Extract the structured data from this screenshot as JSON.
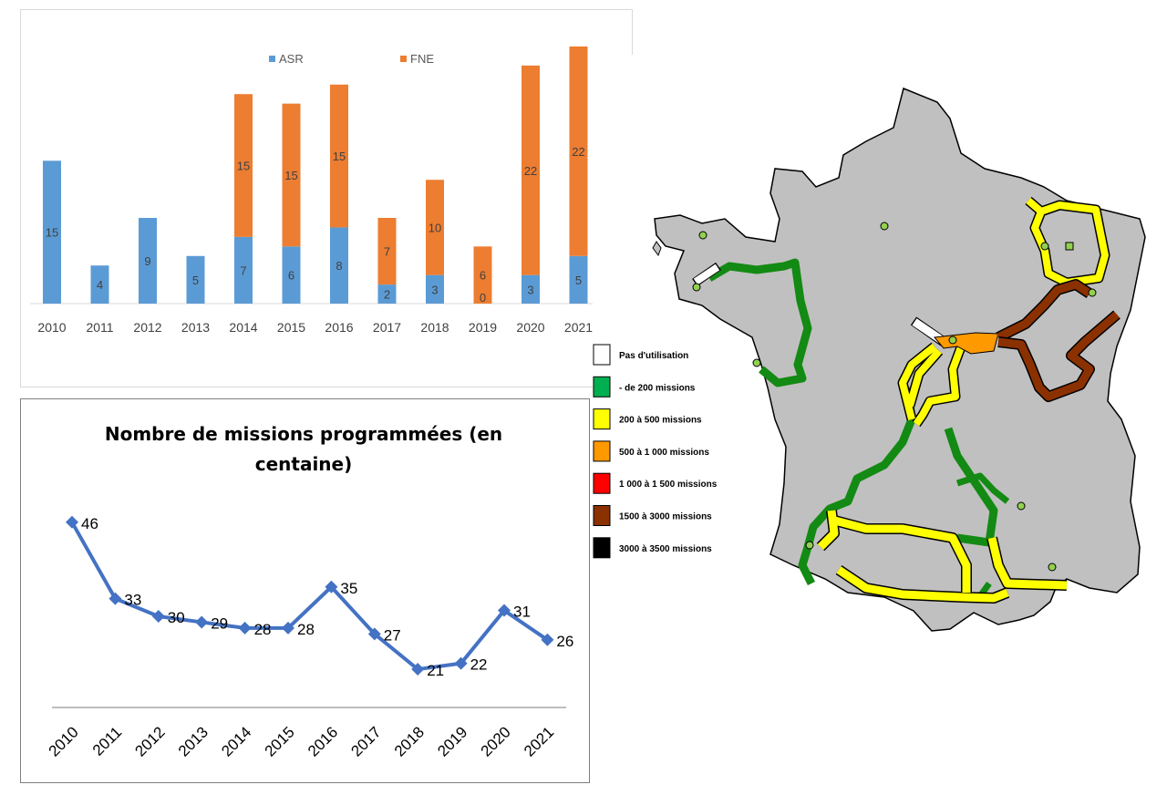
{
  "chart_data": [
    {
      "type": "bar",
      "stacked": true,
      "categories": [
        "2010",
        "2011",
        "2012",
        "2013",
        "2014",
        "2015",
        "2016",
        "2017",
        "2018",
        "2019",
        "2020",
        "2021"
      ],
      "series": [
        {
          "name": "ASR",
          "color": "#5b9bd5",
          "values": [
            15,
            4,
            9,
            5,
            7,
            6,
            8,
            2,
            3,
            0,
            3,
            5
          ]
        },
        {
          "name": "FNE",
          "color": "#ed7d31",
          "values": [
            null,
            null,
            null,
            null,
            15,
            15,
            15,
            7,
            10,
            6,
            22,
            22
          ]
        }
      ],
      "ylim": [
        0,
        27
      ],
      "legend": "top",
      "grid": false
    },
    {
      "type": "line",
      "title": "Nombre de missions programmées (en centaine)",
      "x": [
        "2010",
        "2011",
        "2012",
        "2013",
        "2014",
        "2015",
        "2016",
        "2017",
        "2018",
        "2019",
        "2020",
        "2021"
      ],
      "series": [
        {
          "color": "#4472c4",
          "values": [
            46,
            33,
            30,
            29,
            28,
            28,
            35,
            27,
            21,
            22,
            31,
            26
          ]
        }
      ],
      "ylim": [
        0,
        60
      ],
      "grid": false
    }
  ],
  "map": {
    "legend": [
      {
        "label": "Pas d'utilisation",
        "color": "#ffffff"
      },
      {
        "label": "- de 200 missions",
        "color": "#00b050"
      },
      {
        "label": "200 à 500 missions",
        "color": "#ffff00"
      },
      {
        "label": "500 à 1 000 missions",
        "color": "#ff9900"
      },
      {
        "label": "1 000 à 1 500 missions",
        "color": "#ff0000"
      },
      {
        "label": "1500 à 3000 missions",
        "color": "#8b3100"
      },
      {
        "label": "3000 à 3500 missions",
        "color": "#000000"
      }
    ],
    "land_color": "#c0c0c0",
    "route_green": "#138a13",
    "point_color": "#92d050"
  }
}
